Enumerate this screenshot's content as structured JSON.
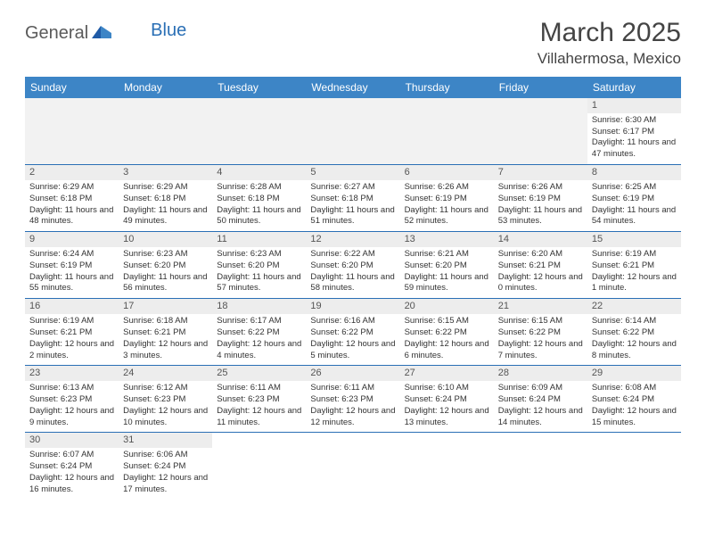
{
  "logo": {
    "general": "General",
    "blue": "Blue"
  },
  "title": "March 2025",
  "location": "Villahermosa, Mexico",
  "colors": {
    "header_bg": "#3d85c6",
    "header_text": "#ffffff",
    "row_divider": "#2a6fb5",
    "stripe_bg": "#ededed",
    "text": "#333333",
    "logo_gray": "#5a5a5a",
    "logo_blue": "#2a6fb5"
  },
  "day_headers": [
    "Sunday",
    "Monday",
    "Tuesday",
    "Wednesday",
    "Thursday",
    "Friday",
    "Saturday"
  ],
  "weeks": [
    [
      null,
      null,
      null,
      null,
      null,
      null,
      {
        "n": "1",
        "sunrise": "Sunrise: 6:30 AM",
        "sunset": "Sunset: 6:17 PM",
        "daylight": "Daylight: 11 hours and 47 minutes."
      }
    ],
    [
      {
        "n": "2",
        "sunrise": "Sunrise: 6:29 AM",
        "sunset": "Sunset: 6:18 PM",
        "daylight": "Daylight: 11 hours and 48 minutes."
      },
      {
        "n": "3",
        "sunrise": "Sunrise: 6:29 AM",
        "sunset": "Sunset: 6:18 PM",
        "daylight": "Daylight: 11 hours and 49 minutes."
      },
      {
        "n": "4",
        "sunrise": "Sunrise: 6:28 AM",
        "sunset": "Sunset: 6:18 PM",
        "daylight": "Daylight: 11 hours and 50 minutes."
      },
      {
        "n": "5",
        "sunrise": "Sunrise: 6:27 AM",
        "sunset": "Sunset: 6:18 PM",
        "daylight": "Daylight: 11 hours and 51 minutes."
      },
      {
        "n": "6",
        "sunrise": "Sunrise: 6:26 AM",
        "sunset": "Sunset: 6:19 PM",
        "daylight": "Daylight: 11 hours and 52 minutes."
      },
      {
        "n": "7",
        "sunrise": "Sunrise: 6:26 AM",
        "sunset": "Sunset: 6:19 PM",
        "daylight": "Daylight: 11 hours and 53 minutes."
      },
      {
        "n": "8",
        "sunrise": "Sunrise: 6:25 AM",
        "sunset": "Sunset: 6:19 PM",
        "daylight": "Daylight: 11 hours and 54 minutes."
      }
    ],
    [
      {
        "n": "9",
        "sunrise": "Sunrise: 6:24 AM",
        "sunset": "Sunset: 6:19 PM",
        "daylight": "Daylight: 11 hours and 55 minutes."
      },
      {
        "n": "10",
        "sunrise": "Sunrise: 6:23 AM",
        "sunset": "Sunset: 6:20 PM",
        "daylight": "Daylight: 11 hours and 56 minutes."
      },
      {
        "n": "11",
        "sunrise": "Sunrise: 6:23 AM",
        "sunset": "Sunset: 6:20 PM",
        "daylight": "Daylight: 11 hours and 57 minutes."
      },
      {
        "n": "12",
        "sunrise": "Sunrise: 6:22 AM",
        "sunset": "Sunset: 6:20 PM",
        "daylight": "Daylight: 11 hours and 58 minutes."
      },
      {
        "n": "13",
        "sunrise": "Sunrise: 6:21 AM",
        "sunset": "Sunset: 6:20 PM",
        "daylight": "Daylight: 11 hours and 59 minutes."
      },
      {
        "n": "14",
        "sunrise": "Sunrise: 6:20 AM",
        "sunset": "Sunset: 6:21 PM",
        "daylight": "Daylight: 12 hours and 0 minutes."
      },
      {
        "n": "15",
        "sunrise": "Sunrise: 6:19 AM",
        "sunset": "Sunset: 6:21 PM",
        "daylight": "Daylight: 12 hours and 1 minute."
      }
    ],
    [
      {
        "n": "16",
        "sunrise": "Sunrise: 6:19 AM",
        "sunset": "Sunset: 6:21 PM",
        "daylight": "Daylight: 12 hours and 2 minutes."
      },
      {
        "n": "17",
        "sunrise": "Sunrise: 6:18 AM",
        "sunset": "Sunset: 6:21 PM",
        "daylight": "Daylight: 12 hours and 3 minutes."
      },
      {
        "n": "18",
        "sunrise": "Sunrise: 6:17 AM",
        "sunset": "Sunset: 6:22 PM",
        "daylight": "Daylight: 12 hours and 4 minutes."
      },
      {
        "n": "19",
        "sunrise": "Sunrise: 6:16 AM",
        "sunset": "Sunset: 6:22 PM",
        "daylight": "Daylight: 12 hours and 5 minutes."
      },
      {
        "n": "20",
        "sunrise": "Sunrise: 6:15 AM",
        "sunset": "Sunset: 6:22 PM",
        "daylight": "Daylight: 12 hours and 6 minutes."
      },
      {
        "n": "21",
        "sunrise": "Sunrise: 6:15 AM",
        "sunset": "Sunset: 6:22 PM",
        "daylight": "Daylight: 12 hours and 7 minutes."
      },
      {
        "n": "22",
        "sunrise": "Sunrise: 6:14 AM",
        "sunset": "Sunset: 6:22 PM",
        "daylight": "Daylight: 12 hours and 8 minutes."
      }
    ],
    [
      {
        "n": "23",
        "sunrise": "Sunrise: 6:13 AM",
        "sunset": "Sunset: 6:23 PM",
        "daylight": "Daylight: 12 hours and 9 minutes."
      },
      {
        "n": "24",
        "sunrise": "Sunrise: 6:12 AM",
        "sunset": "Sunset: 6:23 PM",
        "daylight": "Daylight: 12 hours and 10 minutes."
      },
      {
        "n": "25",
        "sunrise": "Sunrise: 6:11 AM",
        "sunset": "Sunset: 6:23 PM",
        "daylight": "Daylight: 12 hours and 11 minutes."
      },
      {
        "n": "26",
        "sunrise": "Sunrise: 6:11 AM",
        "sunset": "Sunset: 6:23 PM",
        "daylight": "Daylight: 12 hours and 12 minutes."
      },
      {
        "n": "27",
        "sunrise": "Sunrise: 6:10 AM",
        "sunset": "Sunset: 6:24 PM",
        "daylight": "Daylight: 12 hours and 13 minutes."
      },
      {
        "n": "28",
        "sunrise": "Sunrise: 6:09 AM",
        "sunset": "Sunset: 6:24 PM",
        "daylight": "Daylight: 12 hours and 14 minutes."
      },
      {
        "n": "29",
        "sunrise": "Sunrise: 6:08 AM",
        "sunset": "Sunset: 6:24 PM",
        "daylight": "Daylight: 12 hours and 15 minutes."
      }
    ],
    [
      {
        "n": "30",
        "sunrise": "Sunrise: 6:07 AM",
        "sunset": "Sunset: 6:24 PM",
        "daylight": "Daylight: 12 hours and 16 minutes."
      },
      {
        "n": "31",
        "sunrise": "Sunrise: 6:06 AM",
        "sunset": "Sunset: 6:24 PM",
        "daylight": "Daylight: 12 hours and 17 minutes."
      },
      null,
      null,
      null,
      null,
      null
    ]
  ]
}
